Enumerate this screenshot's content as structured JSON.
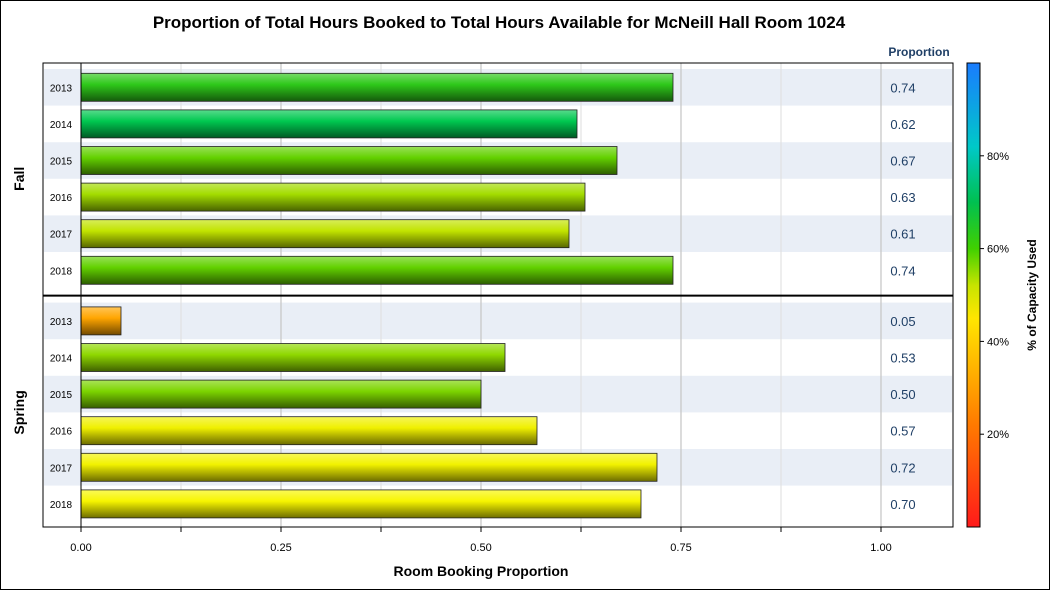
{
  "chart_data": {
    "type": "bar",
    "orientation": "horizontal",
    "title": "Proportion of Total Hours Booked to Total Hours Available for McNeill Hall Room 1024",
    "xlabel": "Room Booking Proportion",
    "xlim": [
      0,
      1.1375
    ],
    "x_ticks": [
      "0.00",
      "0.25",
      "0.50",
      "0.75",
      "1.00"
    ],
    "x_tick_values": [
      0,
      0.25,
      0.5,
      0.75,
      1.0
    ],
    "value_column_header": "Proportion",
    "colorbar": {
      "label": "% of Capacity Used",
      "ticks": [
        "20%",
        "40%",
        "60%",
        "80%"
      ],
      "tick_values": [
        20,
        40,
        60,
        80
      ],
      "range": [
        0,
        100
      ],
      "colors": [
        "#ff1a1a",
        "#ffe600",
        "#00c040",
        "#1a8cff"
      ]
    },
    "groups": [
      {
        "name": "Fall",
        "categories": [
          "2013",
          "2014",
          "2015",
          "2016",
          "2017",
          "2018"
        ],
        "values": [
          0.74,
          0.62,
          0.67,
          0.63,
          0.61,
          0.74
        ],
        "labels": [
          "0.74",
          "0.62",
          "0.67",
          "0.63",
          "0.61",
          "0.74"
        ],
        "colors": [
          "#2ec81a",
          "#00c850",
          "#63d100",
          "#a3dc00",
          "#c2e400",
          "#62d100"
        ]
      },
      {
        "name": "Spring",
        "categories": [
          "2013",
          "2014",
          "2015",
          "2016",
          "2017",
          "2018"
        ],
        "values": [
          0.05,
          0.53,
          0.5,
          0.57,
          0.72,
          0.7
        ],
        "labels": [
          "0.05",
          "0.53",
          "0.50",
          "0.57",
          "0.72",
          "0.70"
        ],
        "colors": [
          "#ffa500",
          "#8fd800",
          "#7cd400",
          "#f0f000",
          "#f2f200",
          "#f7f500"
        ]
      }
    ]
  }
}
